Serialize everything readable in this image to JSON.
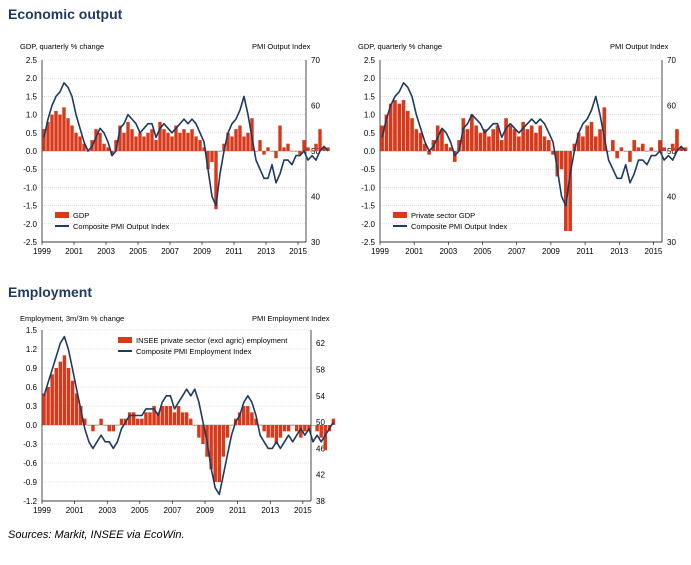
{
  "sections": {
    "economic_output": "Economic output",
    "employment": "Employment"
  },
  "sources": "Sources: Markit, INSEE via EcoWin.",
  "colors": {
    "bar": "#d9391b",
    "line": "#1f3a5f",
    "grid": "#c8c8c8"
  },
  "chart_data": [
    {
      "type": "bar",
      "id": "gdp",
      "ylabel_left": "GDP, quarterly % change",
      "ylabel_right": "PMI Output Index",
      "ylim_left": [
        -2.5,
        2.5
      ],
      "ylim_right": [
        30,
        70
      ],
      "yticks_left": [
        "2.5",
        "2.0",
        "1.5",
        "1.0",
        "0.5",
        "0.0",
        "-0.5",
        "-1.0",
        "-1.5",
        "-2.0",
        "-2.5"
      ],
      "yticks_right": [
        "70",
        "60",
        "50",
        "40",
        "30"
      ],
      "xticks": [
        "1999",
        "2001",
        "2003",
        "2005",
        "2007",
        "2009",
        "2011",
        "2013",
        "2015"
      ],
      "x_range": [
        1999,
        2015.5
      ],
      "grid": true,
      "legend_position": "bottom-left",
      "series": [
        {
          "name": "GDP",
          "kind": "bar",
          "axis": "left",
          "frequency": "quarterly",
          "start": 1999.0,
          "values": [
            0.6,
            0.8,
            1.0,
            1.1,
            1.0,
            1.2,
            0.9,
            0.7,
            0.5,
            0.4,
            0.2,
            0.0,
            0.3,
            0.6,
            0.5,
            0.2,
            0.1,
            -0.1,
            0.3,
            0.7,
            0.5,
            0.8,
            0.6,
            0.4,
            0.5,
            0.4,
            0.5,
            0.6,
            0.3,
            0.8,
            0.6,
            0.5,
            0.4,
            0.7,
            0.5,
            0.6,
            0.5,
            0.6,
            0.4,
            0.3,
            0.1,
            -0.5,
            -0.3,
            -1.6,
            0.0,
            0.2,
            0.5,
            0.4,
            0.6,
            0.7,
            0.4,
            0.5,
            0.9,
            0.0,
            0.3,
            -0.1,
            0.1,
            0.0,
            -0.2,
            0.7,
            0.1,
            0.2,
            0.0,
            0.0,
            -0.1,
            0.3,
            0.1,
            0.0,
            0.2,
            0.6,
            0.1,
            0.1
          ]
        },
        {
          "name": "Composite PMI Output Index",
          "kind": "line",
          "axis": "right",
          "frequency": "quarterly",
          "start": 1999.0,
          "values": [
            53,
            57,
            60,
            62,
            63,
            65,
            64,
            62,
            58,
            55,
            52,
            50,
            51,
            53,
            55,
            54,
            52,
            49,
            50,
            55,
            56,
            58,
            57,
            56,
            54,
            55,
            56,
            56,
            53,
            55,
            56,
            55,
            54,
            55,
            56,
            57,
            56,
            57,
            56,
            54,
            52,
            46,
            40,
            38,
            45,
            50,
            54,
            56,
            57,
            59,
            62,
            58,
            53,
            48,
            46,
            44,
            44,
            47,
            43,
            45,
            48,
            48,
            47,
            49,
            49,
            50,
            48,
            49,
            48,
            50,
            51,
            50
          ]
        }
      ]
    },
    {
      "type": "bar",
      "id": "private-gdp",
      "ylabel_left": "GDP, quarterly % change",
      "ylabel_right": "PMI Output Index",
      "ylim_left": [
        -2.5,
        2.5
      ],
      "ylim_right": [
        30,
        70
      ],
      "yticks_left": [
        "2.5",
        "2.0",
        "1.5",
        "1.0",
        "0.5",
        "0.0",
        "-0.5",
        "-1.0",
        "-1.5",
        "-2.0",
        "-2.5"
      ],
      "yticks_right": [
        "70",
        "60",
        "50",
        "40",
        "30"
      ],
      "xticks": [
        "1999",
        "2001",
        "2003",
        "2005",
        "2007",
        "2009",
        "2011",
        "2013",
        "2015"
      ],
      "x_range": [
        1999,
        2015.5
      ],
      "grid": true,
      "legend_position": "bottom-left",
      "series": [
        {
          "name": "Private sector GDP",
          "kind": "bar",
          "axis": "left",
          "frequency": "quarterly",
          "start": 1999.0,
          "values": [
            0.7,
            1.0,
            1.3,
            1.4,
            1.3,
            1.4,
            1.1,
            0.9,
            0.6,
            0.5,
            0.2,
            -0.1,
            0.3,
            0.7,
            0.6,
            0.2,
            0.1,
            -0.3,
            0.3,
            0.9,
            0.6,
            1.0,
            0.7,
            0.5,
            0.6,
            0.4,
            0.6,
            0.7,
            0.3,
            0.9,
            0.7,
            0.6,
            0.4,
            0.8,
            0.6,
            0.7,
            0.5,
            0.7,
            0.4,
            0.3,
            -0.1,
            -0.7,
            -0.5,
            -2.2,
            -2.2,
            0.2,
            0.5,
            0.4,
            0.7,
            0.8,
            0.4,
            0.6,
            1.2,
            0.0,
            0.3,
            -0.2,
            0.1,
            0.0,
            -0.3,
            0.3,
            0.1,
            0.2,
            0.0,
            0.1,
            0.0,
            0.3,
            0.1,
            0.0,
            0.2,
            0.6,
            0.1,
            0.1
          ]
        },
        {
          "name": "Composite PMI Output Index",
          "kind": "line",
          "axis": "right",
          "frequency": "quarterly",
          "start": 1999.0,
          "values": [
            53,
            57,
            60,
            62,
            63,
            65,
            64,
            62,
            58,
            55,
            52,
            50,
            51,
            53,
            55,
            54,
            52,
            49,
            50,
            55,
            56,
            58,
            57,
            56,
            54,
            55,
            56,
            56,
            53,
            55,
            56,
            55,
            54,
            55,
            56,
            57,
            56,
            57,
            56,
            54,
            52,
            46,
            40,
            38,
            45,
            50,
            54,
            56,
            57,
            59,
            62,
            58,
            53,
            48,
            46,
            44,
            44,
            47,
            43,
            45,
            48,
            48,
            47,
            49,
            49,
            50,
            48,
            49,
            48,
            50,
            51,
            50
          ]
        }
      ]
    },
    {
      "type": "bar",
      "id": "employment",
      "ylabel_left": "Employment,  3m/3m % change",
      "ylabel_right": "PMI Employment  Index",
      "ylim_left": [
        -1.2,
        1.5
      ],
      "ylim_right": [
        38,
        64
      ],
      "yticks_left": [
        "1.5",
        "1.2",
        "0.9",
        "0.6",
        "0.3",
        "0.0",
        "-0.3",
        "-0.6",
        "-0.9",
        "-1.2"
      ],
      "yticks_right": [
        "62",
        "58",
        "54",
        "50",
        "46",
        "42",
        "38"
      ],
      "xticks": [
        "1999",
        "2001",
        "2003",
        "2005",
        "2007",
        "2009",
        "2011",
        "2013",
        "2015"
      ],
      "x_range": [
        1999,
        2015.5
      ],
      "grid": true,
      "legend_position": "top-center",
      "series": [
        {
          "name": "INSEE private sector (excl agric) employment",
          "kind": "bar",
          "axis": "left",
          "frequency": "quarterly",
          "start": 1999.0,
          "values": [
            0.5,
            0.6,
            0.8,
            0.9,
            1.0,
            1.1,
            0.9,
            0.7,
            0.5,
            0.3,
            0.1,
            0.0,
            -0.1,
            0.0,
            0.1,
            0.0,
            -0.1,
            -0.1,
            0.0,
            0.1,
            0.1,
            0.2,
            0.2,
            0.1,
            0.1,
            0.2,
            0.2,
            0.3,
            0.2,
            0.3,
            0.3,
            0.3,
            0.2,
            0.3,
            0.2,
            0.2,
            0.1,
            0.0,
            -0.2,
            -0.3,
            -0.5,
            -0.7,
            -0.9,
            -0.9,
            -0.5,
            -0.2,
            0.0,
            0.1,
            0.2,
            0.3,
            0.3,
            0.2,
            0.1,
            0.0,
            -0.1,
            -0.2,
            -0.2,
            -0.3,
            -0.2,
            -0.1,
            -0.1,
            0.0,
            -0.1,
            -0.2,
            -0.1,
            -0.1,
            0.0,
            -0.1,
            -0.2,
            -0.4,
            -0.1,
            0.1
          ]
        },
        {
          "name": "Composite PMI Employment Index",
          "kind": "line",
          "axis": "right",
          "frequency": "quarterly",
          "start": 1999.0,
          "values": [
            54,
            56,
            58,
            60,
            62,
            63,
            61,
            58,
            55,
            52,
            49,
            47,
            46,
            47,
            48,
            47,
            47,
            46,
            47,
            49,
            50,
            51,
            51,
            51,
            51,
            52,
            52,
            52,
            51,
            53,
            54,
            54,
            52,
            53,
            54,
            55,
            54,
            55,
            53,
            50,
            47,
            43,
            40,
            39,
            42,
            45,
            48,
            50,
            51,
            53,
            54,
            53,
            51,
            48,
            47,
            46,
            46,
            47,
            46,
            47,
            48,
            47,
            48,
            49,
            48,
            49,
            47,
            48,
            47,
            48,
            49,
            50
          ]
        }
      ]
    }
  ]
}
